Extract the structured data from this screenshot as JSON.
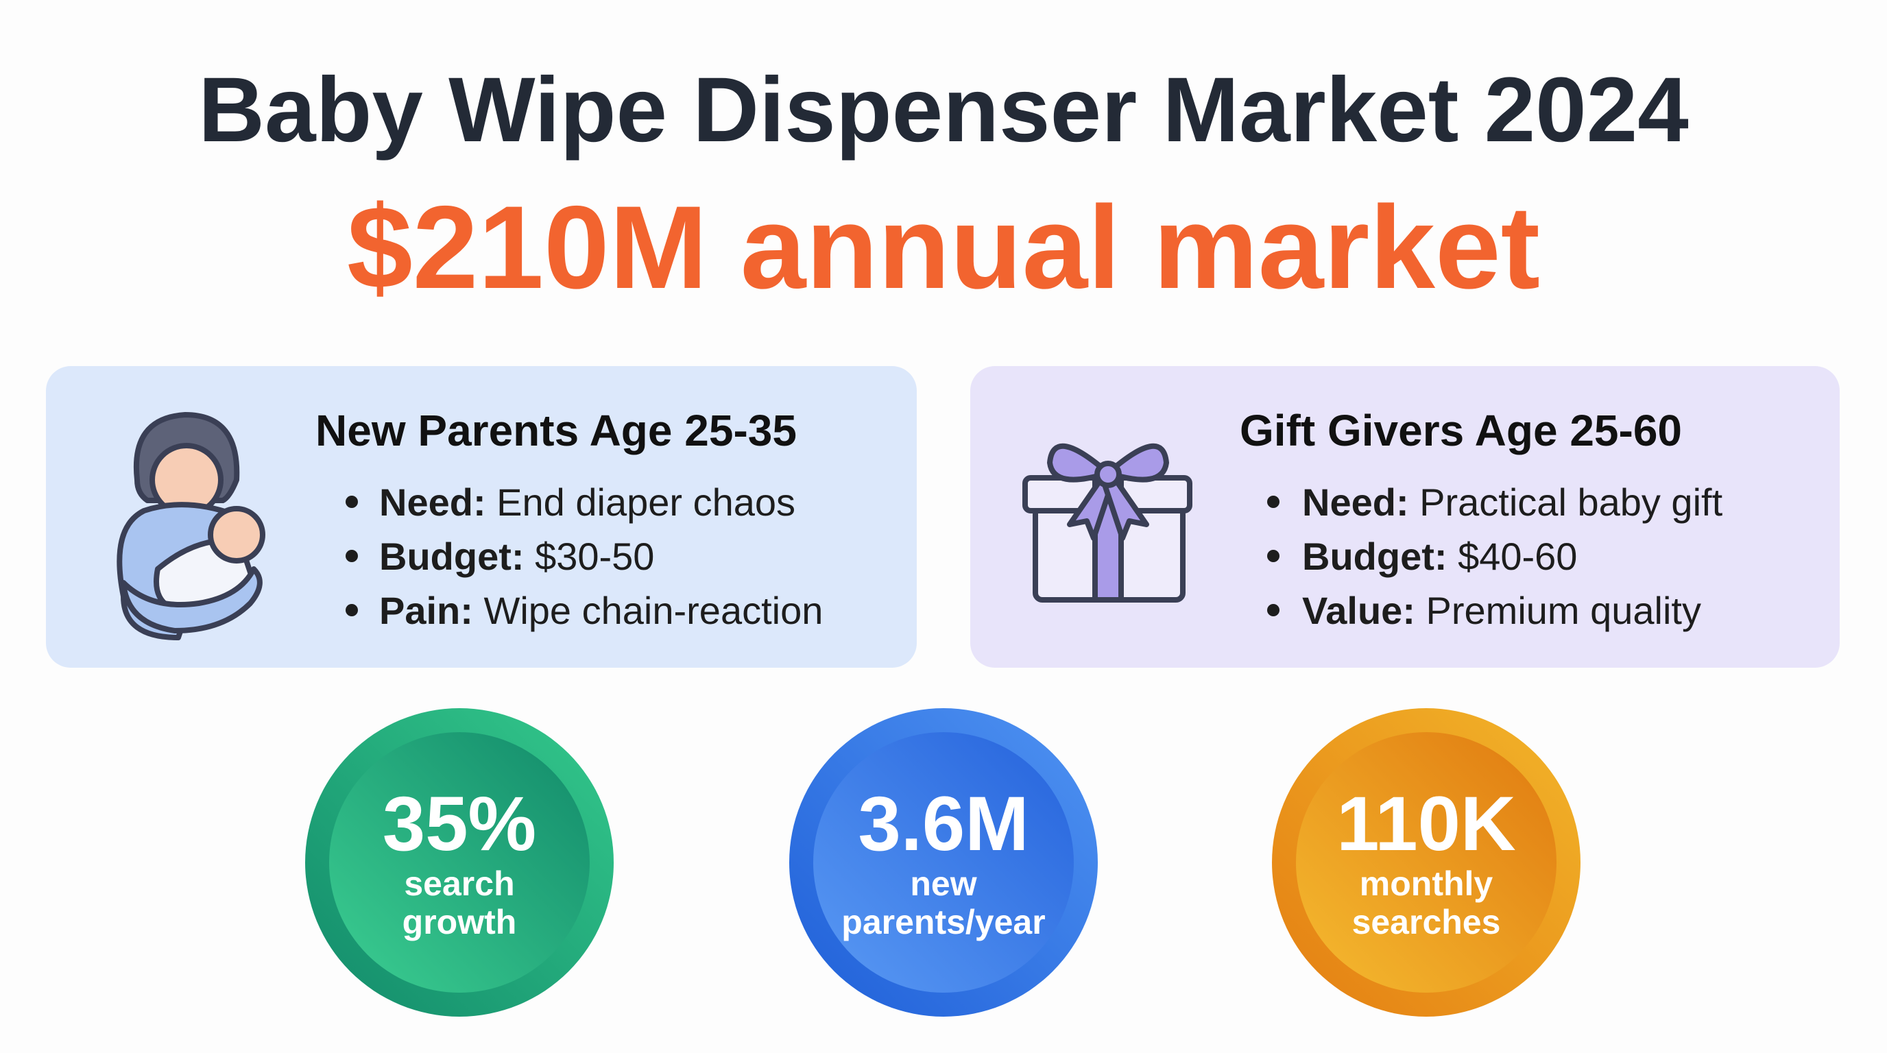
{
  "header": {
    "title": "Baby Wipe Dispenser Market 2024",
    "subtitle": "$210M annual market"
  },
  "cards": [
    {
      "title": "New Parents Age 25-35",
      "bullets": [
        {
          "label": "Need:",
          "text": "End diaper chaos"
        },
        {
          "label": "Budget:",
          "text": "$30-50"
        },
        {
          "label": "Pain:",
          "text": "Wipe chain-reaction"
        }
      ]
    },
    {
      "title": "Gift Givers Age 25-60",
      "bullets": [
        {
          "label": "Need:",
          "text": "Practical baby gift"
        },
        {
          "label": "Budget:",
          "text": "$40-60"
        },
        {
          "label": "Value:",
          "text": "Premium quality"
        }
      ]
    }
  ],
  "stats": [
    {
      "value": "35%",
      "label_lines": [
        "search",
        "growth"
      ]
    },
    {
      "value": "3.6M",
      "label_lines": [
        "new",
        "parents/year"
      ]
    },
    {
      "value": "110K",
      "label_lines": [
        "monthly",
        "searches"
      ]
    }
  ]
}
